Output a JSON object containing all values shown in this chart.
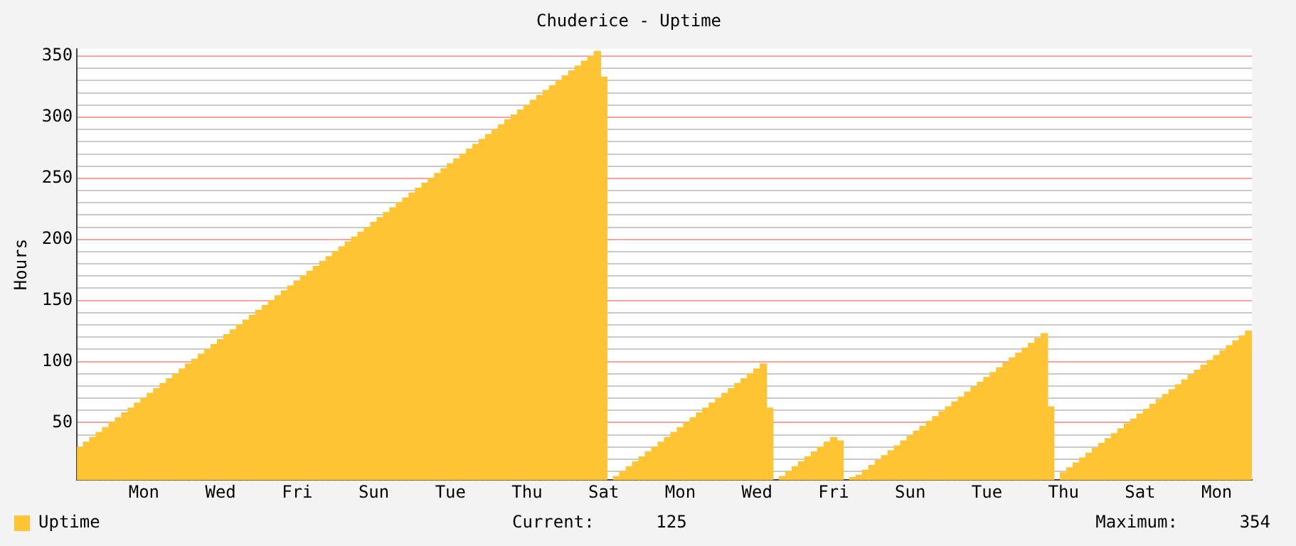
{
  "chart_data": {
    "type": "bar",
    "title": "Chuderice - Uptime",
    "ylabel": "Hours",
    "categories": [
      null,
      null,
      null,
      null,
      null,
      null,
      null,
      null,
      null,
      null,
      "Mon",
      null,
      null,
      null,
      null,
      null,
      null,
      null,
      null,
      null,
      null,
      null,
      "Wed",
      null,
      null,
      null,
      null,
      null,
      null,
      null,
      null,
      null,
      null,
      null,
      "Fri",
      null,
      null,
      null,
      null,
      null,
      null,
      null,
      null,
      null,
      null,
      null,
      "Sun",
      null,
      null,
      null,
      null,
      null,
      null,
      null,
      null,
      null,
      null,
      null,
      "Tue",
      null,
      null,
      null,
      null,
      null,
      null,
      null,
      null,
      null,
      null,
      null,
      "Thu",
      null,
      null,
      null,
      null,
      null,
      null,
      null,
      null,
      null,
      null,
      null,
      "Sat",
      null,
      null,
      null,
      null,
      null,
      null,
      null,
      null,
      null,
      null,
      null,
      "Mon",
      null,
      null,
      null,
      null,
      null,
      null,
      null,
      null,
      null,
      null,
      null,
      "Wed",
      null,
      null,
      null,
      null,
      null,
      null,
      null,
      null,
      null,
      null,
      null,
      "Fri",
      null,
      null,
      null,
      null,
      null,
      null,
      null,
      null,
      null,
      null,
      null,
      "Sun",
      null,
      null,
      null,
      null,
      null,
      null,
      null,
      null,
      null,
      null,
      null,
      "Tue",
      null,
      null,
      null,
      null,
      null,
      null,
      null,
      null,
      null,
      null,
      null,
      "Thu",
      null,
      null,
      null,
      null,
      null,
      null,
      null,
      null,
      null,
      null,
      null,
      "Sat",
      null,
      null,
      null,
      null,
      null,
      null,
      null,
      null,
      null,
      null,
      null,
      "Mon",
      null,
      null,
      null,
      null,
      null
    ],
    "series": [
      {
        "name": "Uptime",
        "color": "#ffc433",
        "values": [
          30,
          34,
          38,
          42,
          46,
          50,
          54,
          58,
          62,
          66,
          70,
          74,
          78,
          82,
          86,
          90,
          94,
          98,
          102,
          106,
          110,
          114,
          118,
          122,
          126,
          130,
          134,
          138,
          142,
          146,
          150,
          154,
          158,
          162,
          166,
          170,
          174,
          178,
          182,
          186,
          190,
          194,
          198,
          202,
          206,
          210,
          214,
          218,
          222,
          226,
          230,
          234,
          238,
          242,
          246,
          250,
          254,
          258,
          262,
          266,
          270,
          274,
          278,
          282,
          286,
          290,
          294,
          298,
          302,
          306,
          310,
          314,
          318,
          322,
          326,
          330,
          334,
          338,
          342,
          346,
          350,
          354,
          333,
          null,
          6,
          10,
          14,
          18,
          22,
          26,
          30,
          34,
          38,
          42,
          46,
          50,
          54,
          58,
          62,
          66,
          70,
          74,
          78,
          82,
          86,
          90,
          94,
          98,
          62,
          null,
          6,
          10,
          14,
          18,
          22,
          26,
          30,
          34,
          38,
          35,
          null,
          5,
          7,
          11,
          15,
          19,
          23,
          27,
          31,
          35,
          39,
          43,
          47,
          51,
          55,
          59,
          63,
          67,
          71,
          75,
          79,
          83,
          87,
          91,
          95,
          99,
          103,
          107,
          111,
          115,
          119,
          123,
          63,
          null,
          9,
          13,
          17,
          21,
          25,
          29,
          33,
          37,
          41,
          45,
          49,
          53,
          57,
          61,
          65,
          69,
          73,
          77,
          81,
          85,
          89,
          93,
          97,
          101,
          105,
          109,
          113,
          117,
          121,
          125
        ]
      }
    ],
    "ylim": [
      3,
      356
    ],
    "yticks": [
      {
        "value": 10,
        "label": null
      },
      {
        "value": 20,
        "label": null
      },
      {
        "value": 30,
        "label": null
      },
      {
        "value": 40,
        "label": null
      },
      50,
      {
        "value": 60,
        "label": null
      },
      {
        "value": 70,
        "label": null
      },
      {
        "value": 80,
        "label": null
      },
      {
        "value": 90,
        "label": null
      },
      100,
      {
        "value": 110,
        "label": null
      },
      {
        "value": 120,
        "label": null
      },
      {
        "value": 130,
        "label": null
      },
      {
        "value": 140,
        "label": null
      },
      150,
      {
        "value": 160,
        "label": null
      },
      {
        "value": 170,
        "label": null
      },
      {
        "value": 180,
        "label": null
      },
      {
        "value": 190,
        "label": null
      },
      200,
      {
        "value": 210,
        "label": null
      },
      {
        "value": 220,
        "label": null
      },
      {
        "value": 230,
        "label": null
      },
      {
        "value": 240,
        "label": null
      },
      250,
      {
        "value": 260,
        "label": null
      },
      {
        "value": 270,
        "label": null
      },
      {
        "value": 280,
        "label": null
      },
      {
        "value": 290,
        "label": null
      },
      300,
      {
        "value": 310,
        "label": null
      },
      {
        "value": 320,
        "label": null
      },
      {
        "value": 330,
        "label": null
      },
      {
        "value": 340,
        "label": null
      },
      350
    ],
    "grid": "y",
    "legend": "bottom left",
    "annotations": [
      "Current:      125",
      "Maximum:      354"
    ]
  }
}
